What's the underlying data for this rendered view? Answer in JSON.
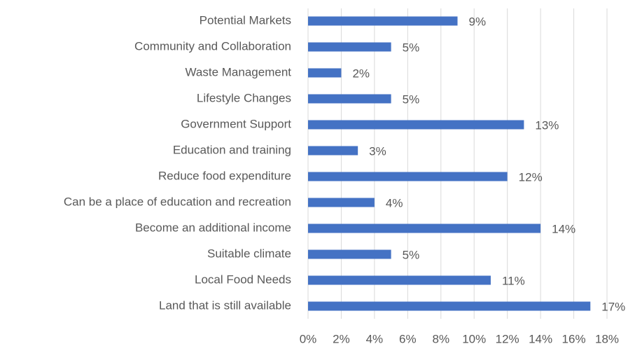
{
  "chart_data": {
    "type": "barh",
    "categories": [
      "Potential Markets",
      "Community and Collaboration",
      "Waste Management",
      "Lifestyle Changes",
      "Government Support",
      "Education and training",
      "Reduce food expenditure",
      "Can be a place of education and recreation",
      "Become an additional income",
      "Suitable climate",
      "Local Food Needs",
      "Land that is still available"
    ],
    "values": [
      9,
      5,
      2,
      5,
      13,
      3,
      12,
      4,
      14,
      5,
      11,
      17
    ],
    "value_labels": [
      "9%",
      "5%",
      "2%",
      "5%",
      "13%",
      "3%",
      "12%",
      "4%",
      "14%",
      "5%",
      "11%",
      "17%"
    ],
    "color": "#4472c4",
    "xlim": [
      0,
      18
    ],
    "xticks": [
      {
        "value": 0,
        "label": "0%"
      },
      {
        "value": 2,
        "label": "2%"
      },
      {
        "value": 4,
        "label": "4%"
      },
      {
        "value": 6,
        "label": "6%"
      },
      {
        "value": 8,
        "label": "8%"
      },
      {
        "value": 10,
        "label": "10%"
      },
      {
        "value": 12,
        "label": "12%"
      },
      {
        "value": 14,
        "label": "14%"
      },
      {
        "value": 16,
        "label": "16%"
      },
      {
        "value": 18,
        "label": "18%"
      }
    ],
    "grid": true
  }
}
